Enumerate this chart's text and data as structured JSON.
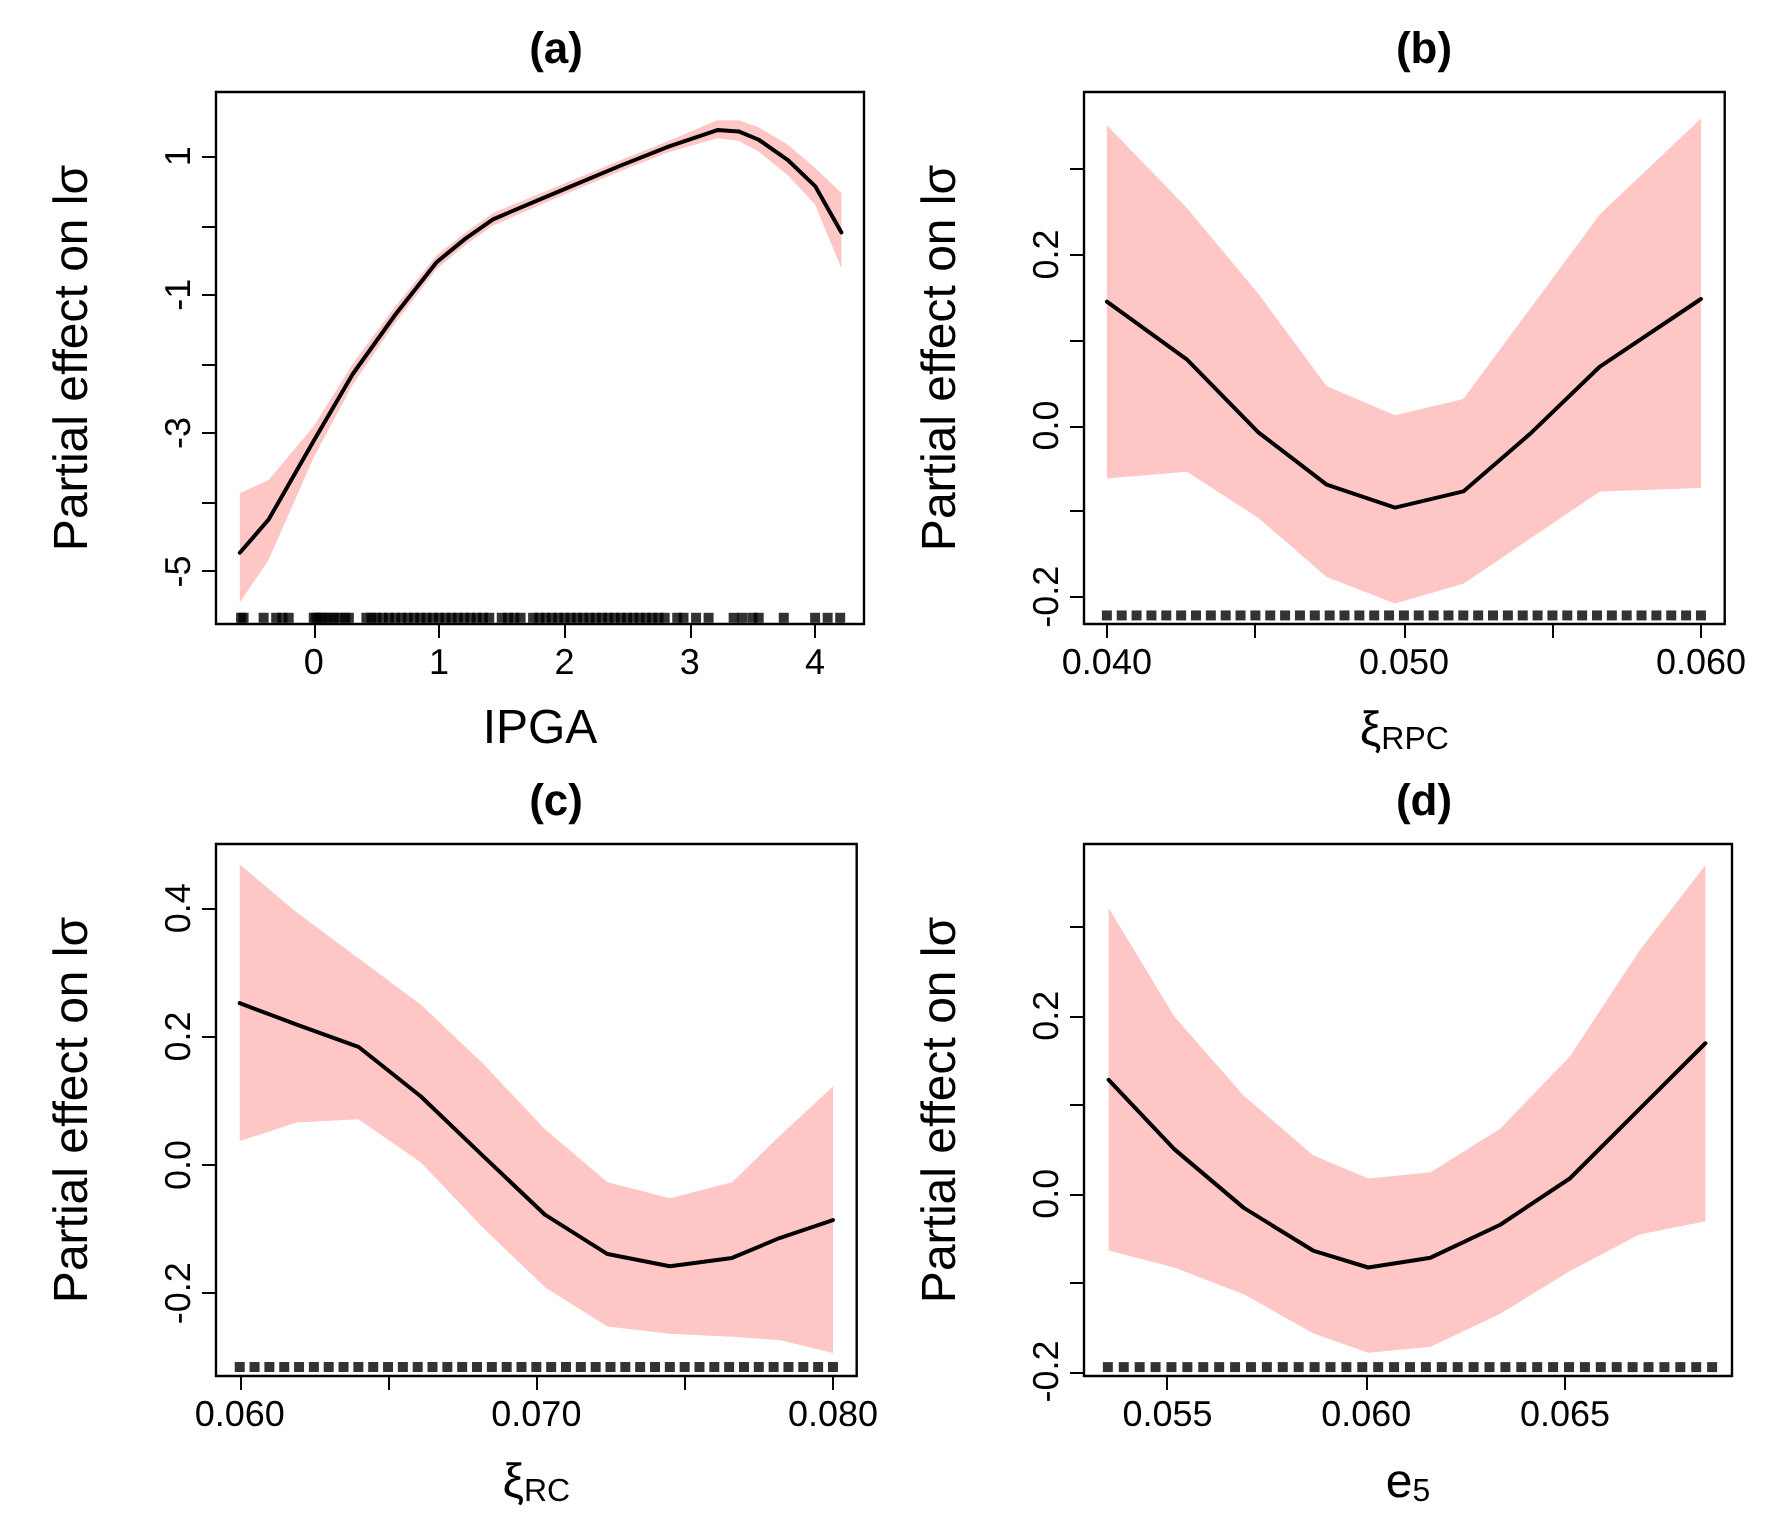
{
  "chart_data": [
    {
      "type": "line",
      "title": "(a)",
      "xlabel": "IPGA",
      "ylabel": "Partial effect on lσ",
      "xlim": [
        -0.78,
        4.39
      ],
      "ylim": [
        -5.76,
        1.93
      ],
      "xticks": [
        0,
        1,
        2,
        3,
        4
      ],
      "yticks": [
        -5,
        {
          "value": -4,
          "label": null
        },
        -3,
        {
          "value": -2,
          "label": null
        },
        -1,
        {
          "value": 0,
          "label": null
        },
        1
      ],
      "series": [
        {
          "color": "#000000",
          "x": [
            -0.59,
            -0.36,
            0,
            0.31,
            0.65,
            0.98,
            1.21,
            1.43,
            1.99,
            2.44,
            2.83,
            3.22,
            3.39,
            3.55,
            3.78,
            4.0,
            4.21
          ],
          "values": [
            -4.73,
            -4.25,
            -3.11,
            -2.15,
            -1.29,
            -0.53,
            -0.19,
            0.09,
            0.52,
            0.86,
            1.14,
            1.38,
            1.36,
            1.24,
            0.95,
            0.57,
            -0.1
          ],
          "lower": [
            -5.45,
            -4.83,
            -3.35,
            -2.3,
            -1.41,
            -0.63,
            -0.28,
            0.0,
            0.44,
            0.78,
            1.06,
            1.26,
            1.22,
            1.07,
            0.73,
            0.3,
            -0.62
          ],
          "upper": [
            -3.87,
            -3.68,
            -2.9,
            -2.0,
            -1.17,
            -0.43,
            -0.1,
            0.18,
            0.6,
            0.94,
            1.22,
            1.52,
            1.52,
            1.42,
            1.17,
            0.83,
            0.47
          ]
        },
        {
          "type": "scatter",
          "marker": "square",
          "color": "#000000",
          "x": [
            -0.58,
            -0.56,
            -0.4,
            -0.3,
            -0.25,
            -0.2,
            0.0,
            0.02,
            0.05,
            0.08,
            0.12,
            0.16,
            0.2,
            0.25,
            0.28,
            0.42,
            0.46,
            0.5,
            0.55,
            0.6,
            0.65,
            0.7,
            0.75,
            0.8,
            0.85,
            0.9,
            0.95,
            1.0,
            1.05,
            1.1,
            1.15,
            1.2,
            1.25,
            1.3,
            1.35,
            1.4,
            1.5,
            1.55,
            1.6,
            1.65,
            1.75,
            1.8,
            1.85,
            1.9,
            1.95,
            2.0,
            2.05,
            2.1,
            2.15,
            2.2,
            2.25,
            2.3,
            2.35,
            2.4,
            2.45,
            2.5,
            2.55,
            2.6,
            2.65,
            2.7,
            2.75,
            2.8,
            2.9,
            2.95,
            3.05,
            3.15,
            3.35,
            3.42,
            3.5,
            3.55,
            3.75,
            4.0,
            4.1,
            4.2
          ],
          "values": [
            -5.67,
            -5.67,
            -5.67,
            -5.67,
            -5.67,
            -5.67,
            -5.67,
            -5.67,
            -5.67,
            -5.67,
            -5.67,
            -5.67,
            -5.67,
            -5.67,
            -5.67,
            -5.67,
            -5.67,
            -5.67,
            -5.67,
            -5.67,
            -5.67,
            -5.67,
            -5.67,
            -5.67,
            -5.67,
            -5.67,
            -5.67,
            -5.67,
            -5.67,
            -5.67,
            -5.67,
            -5.67,
            -5.67,
            -5.67,
            -5.67,
            -5.67,
            -5.67,
            -5.67,
            -5.67,
            -5.67,
            -5.67,
            -5.67,
            -5.67,
            -5.67,
            -5.67,
            -5.67,
            -5.67,
            -5.67,
            -5.67,
            -5.67,
            -5.67,
            -5.67,
            -5.67,
            -5.67,
            -5.67,
            -5.67,
            -5.67,
            -5.67,
            -5.67,
            -5.67,
            -5.67,
            -5.67,
            -5.67,
            -5.67,
            -5.67,
            -5.67,
            -5.67,
            -5.67,
            -5.67,
            -5.67,
            -5.67,
            -5.67,
            -5.67,
            -5.67
          ]
        }
      ]
    },
    {
      "type": "line",
      "title": "(b)",
      "xlabel": "ξ$_{RPC}$",
      "ylabel": "Partial effect on lσ",
      "xlim": [
        0.03923,
        0.0608
      ],
      "ylim": [
        -0.232,
        0.39
      ],
      "xticks": [
        {
          "value": 0.04,
          "label": "0.040"
        },
        {
          "value": 0.045,
          "label": null
        },
        {
          "value": 0.05,
          "label": "0.050"
        },
        {
          "value": 0.055,
          "label": null
        },
        {
          "value": 0.06,
          "label": "0.060"
        }
      ],
      "yticks": [
        -0.2,
        {
          "value": -0.1,
          "label": null
        },
        {
          "value": 0,
          "label": "0.0"
        },
        {
          "value": 0.1,
          "label": null
        },
        0.2,
        {
          "value": 0.3,
          "label": null
        }
      ],
      "series": [
        {
          "color": "#000000",
          "x": [
            0.04,
            0.0427,
            0.0451,
            0.0474,
            0.0497,
            0.052,
            0.0543,
            0.0566,
            0.06
          ],
          "values": [
            0.145,
            0.077,
            -0.008,
            -0.069,
            -0.096,
            -0.077,
            -0.008,
            0.069,
            0.148
          ],
          "lower": [
            -0.062,
            -0.054,
            -0.108,
            -0.177,
            -0.208,
            -0.185,
            -0.131,
            -0.077,
            -0.073
          ],
          "upper": [
            0.351,
            0.254,
            0.154,
            0.046,
            0.012,
            0.031,
            0.139,
            0.247,
            0.359
          ]
        },
        {
          "type": "scatter",
          "marker": "square",
          "color": "#000000",
          "x": [
            0.04,
            0.0405,
            0.041,
            0.0415,
            0.042,
            0.0425,
            0.043,
            0.0435,
            0.044,
            0.0445,
            0.045,
            0.0455,
            0.046,
            0.0465,
            0.047,
            0.0475,
            0.048,
            0.0485,
            0.049,
            0.0495,
            0.05,
            0.0505,
            0.051,
            0.0515,
            0.052,
            0.0525,
            0.053,
            0.0535,
            0.054,
            0.0545,
            0.055,
            0.0555,
            0.056,
            0.0565,
            0.057,
            0.0575,
            0.058,
            0.0585,
            0.059,
            0.0595,
            0.06
          ],
          "values": [
            -0.222,
            -0.222,
            -0.222,
            -0.222,
            -0.222,
            -0.222,
            -0.222,
            -0.222,
            -0.222,
            -0.222,
            -0.222,
            -0.222,
            -0.222,
            -0.222,
            -0.222,
            -0.222,
            -0.222,
            -0.222,
            -0.222,
            -0.222,
            -0.222,
            -0.222,
            -0.222,
            -0.222,
            -0.222,
            -0.222,
            -0.222,
            -0.222,
            -0.222,
            -0.222,
            -0.222,
            -0.222,
            -0.222,
            -0.222,
            -0.222,
            -0.222,
            -0.222,
            -0.222,
            -0.222,
            -0.222,
            -0.222
          ]
        }
      ]
    },
    {
      "type": "line",
      "title": "(c)",
      "xlabel": "ξ$_{RC}$",
      "ylabel": "Partial effect on lσ",
      "xlim": [
        0.0592,
        0.0808
      ],
      "ylim": [
        -0.329,
        0.5
      ],
      "xticks": [
        {
          "value": 0.06,
          "label": "0.060"
        },
        {
          "value": 0.065,
          "label": null
        },
        {
          "value": 0.07,
          "label": "0.070"
        },
        {
          "value": 0.075,
          "label": null
        },
        {
          "value": 0.08,
          "label": "0.080"
        }
      ],
      "yticks": [
        -0.2,
        {
          "value": 0,
          "label": "0.0"
        },
        0.2,
        0.4
      ],
      "series": [
        {
          "color": "#000000",
          "x": [
            0.06,
            0.0619,
            0.064,
            0.0661,
            0.0682,
            0.0703,
            0.0724,
            0.0745,
            0.0766,
            0.0782,
            0.08
          ],
          "values": [
            0.252,
            0.219,
            0.184,
            0.107,
            0.014,
            -0.078,
            -0.139,
            -0.158,
            -0.145,
            -0.114,
            -0.086
          ],
          "lower": [
            0.037,
            0.066,
            0.071,
            0.004,
            -0.098,
            -0.191,
            -0.252,
            -0.263,
            -0.268,
            -0.273,
            -0.293
          ],
          "upper": [
            0.468,
            0.394,
            0.322,
            0.25,
            0.158,
            0.055,
            -0.027,
            -0.052,
            -0.027,
            0.045,
            0.122
          ]
        },
        {
          "type": "scatter",
          "marker": "square",
          "color": "#000000",
          "x": [
            0.06,
            0.0605,
            0.061,
            0.0615,
            0.062,
            0.0625,
            0.063,
            0.0635,
            0.064,
            0.0645,
            0.065,
            0.0655,
            0.066,
            0.0665,
            0.067,
            0.0675,
            0.068,
            0.0685,
            0.069,
            0.0695,
            0.07,
            0.0705,
            0.071,
            0.0715,
            0.072,
            0.0725,
            0.073,
            0.0735,
            0.074,
            0.0745,
            0.075,
            0.0755,
            0.076,
            0.0765,
            0.077,
            0.0775,
            0.078,
            0.0785,
            0.079,
            0.0795,
            0.08
          ],
          "values": [
            -0.315,
            -0.315,
            -0.315,
            -0.315,
            -0.315,
            -0.315,
            -0.315,
            -0.315,
            -0.315,
            -0.315,
            -0.315,
            -0.315,
            -0.315,
            -0.315,
            -0.315,
            -0.315,
            -0.315,
            -0.315,
            -0.315,
            -0.315,
            -0.315,
            -0.315,
            -0.315,
            -0.315,
            -0.315,
            -0.315,
            -0.315,
            -0.315,
            -0.315,
            -0.315,
            -0.315,
            -0.315,
            -0.315,
            -0.315,
            -0.315,
            -0.315,
            -0.315,
            -0.315,
            -0.315,
            -0.315,
            -0.315
          ]
        }
      ]
    },
    {
      "type": "line",
      "title": "(d)",
      "xlabel": "e$_{5}$",
      "ylabel": "Partial effect on lσ",
      "xlim": [
        0.0529,
        0.0692
      ],
      "ylim": [
        -0.205,
        0.393
      ],
      "xticks": [
        {
          "value": 0.055,
          "label": "0.055"
        },
        {
          "value": 0.06,
          "label": "0.060"
        },
        {
          "value": 0.065,
          "label": "0.065"
        }
      ],
      "yticks": [
        -0.2,
        {
          "value": -0.1,
          "label": null
        },
        {
          "value": 0,
          "label": "0.0"
        },
        {
          "value": 0.1,
          "label": null
        },
        0.2,
        {
          "value": 0.3,
          "label": null
        }
      ],
      "series": [
        {
          "color": "#000000",
          "x": [
            0.05352,
            0.05517,
            0.05692,
            0.05866,
            0.06005,
            0.06162,
            0.06337,
            0.06512,
            0.06687,
            0.06853
          ],
          "values": [
            0.128,
            0.05,
            -0.016,
            -0.064,
            -0.083,
            -0.072,
            -0.035,
            0.017,
            0.095,
            0.169
          ],
          "lower": [
            -0.064,
            -0.083,
            -0.113,
            -0.157,
            -0.179,
            -0.172,
            -0.135,
            -0.087,
            -0.046,
            -0.031
          ],
          "upper": [
            0.321,
            0.199,
            0.11,
            0.043,
            0.017,
            0.024,
            0.073,
            0.154,
            0.273,
            0.369
          ]
        },
        {
          "type": "scatter",
          "marker": "square",
          "color": "#000000",
          "x": [
            0.0535,
            0.0539,
            0.0543,
            0.0547,
            0.0551,
            0.0555,
            0.0559,
            0.0563,
            0.0567,
            0.0571,
            0.0575,
            0.0579,
            0.0583,
            0.0587,
            0.0591,
            0.0595,
            0.0599,
            0.0603,
            0.0607,
            0.0611,
            0.0615,
            0.0619,
            0.0623,
            0.0627,
            0.0631,
            0.0635,
            0.0639,
            0.0643,
            0.0647,
            0.0651,
            0.0655,
            0.0659,
            0.0663,
            0.0667,
            0.0671,
            0.0675,
            0.0679,
            0.0683,
            0.0687
          ],
          "values": [
            -0.195,
            -0.195,
            -0.195,
            -0.195,
            -0.195,
            -0.195,
            -0.195,
            -0.195,
            -0.195,
            -0.195,
            -0.195,
            -0.195,
            -0.195,
            -0.195,
            -0.195,
            -0.195,
            -0.195,
            -0.195,
            -0.195,
            -0.195,
            -0.195,
            -0.195,
            -0.195,
            -0.195,
            -0.195,
            -0.195,
            -0.195,
            -0.195,
            -0.195,
            -0.195,
            -0.195,
            -0.195,
            -0.195,
            -0.195,
            -0.195,
            -0.195,
            -0.195,
            -0.195,
            -0.195
          ]
        }
      ]
    }
  ]
}
